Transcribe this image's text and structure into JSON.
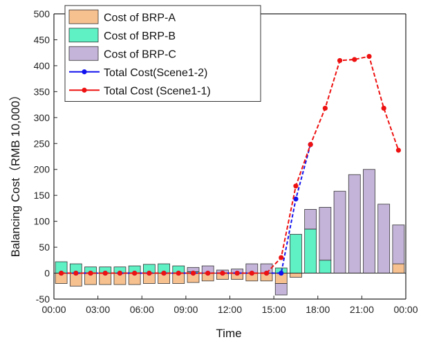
{
  "chart_data": {
    "type": "bar",
    "xlabel": "Time",
    "ylabel": "Balancing Cost（RMB 10,000）",
    "ylim": [
      -50,
      500
    ],
    "yticks": [
      -50,
      0,
      50,
      100,
      150,
      200,
      250,
      300,
      350,
      400,
      450,
      500
    ],
    "xlim": [
      0,
      24
    ],
    "xticks": [
      0,
      3,
      6,
      9,
      12,
      15,
      18,
      21,
      24
    ],
    "xtick_labels": [
      "00:00",
      "03:00",
      "06:00",
      "09:00",
      "12:00",
      "15:00",
      "18:00",
      "21:00",
      "00:00"
    ],
    "hours": [
      0,
      1,
      2,
      3,
      4,
      5,
      6,
      7,
      8,
      9,
      10,
      11,
      12,
      13,
      14,
      15,
      16,
      17,
      18,
      19,
      20,
      21,
      22,
      23
    ],
    "bar_series": [
      {
        "name": "Cost of BRP-A",
        "color": "#f7c08f",
        "values": [
          -20,
          -25,
          -22,
          -22,
          -22,
          -22,
          -20,
          -20,
          -20,
          -18,
          -15,
          -12,
          -12,
          -15,
          -15,
          -20,
          -8,
          0,
          0,
          0,
          0,
          0,
          0,
          18
        ]
      },
      {
        "name": "Cost of BRP-B",
        "color": "#5ff0c4",
        "values": [
          22,
          18,
          12,
          12,
          12,
          14,
          17,
          18,
          14,
          3,
          0,
          0,
          0,
          0,
          0,
          10,
          75,
          85,
          25,
          0,
          0,
          0,
          0,
          0
        ]
      },
      {
        "name": "Cost of BRP-C",
        "color": "#c4b4d9",
        "values": [
          0,
          0,
          0,
          0,
          0,
          0,
          0,
          0,
          0,
          8,
          14,
          6,
          8,
          18,
          18,
          -22,
          0,
          38,
          102,
          158,
          190,
          200,
          133,
          75
        ]
      }
    ],
    "line_series": [
      {
        "name": "Total Cost(Scene1-2)",
        "color": "#1111ee",
        "x": [
          0,
          1,
          2,
          3,
          4,
          5,
          6,
          7,
          8,
          9,
          10,
          11,
          12,
          13,
          14,
          15,
          16,
          17
        ],
        "y": [
          0,
          0,
          0,
          0,
          0,
          0,
          0,
          0,
          0,
          0,
          0,
          0,
          0,
          0,
          0,
          0,
          143,
          248
        ]
      },
      {
        "name": "Total Cost (Scene1-1)",
        "color": "#ee1111",
        "x": [
          0,
          1,
          2,
          3,
          4,
          5,
          6,
          7,
          8,
          9,
          10,
          11,
          12,
          13,
          14,
          15,
          16,
          17,
          18,
          19,
          20,
          21,
          22,
          23
        ],
        "y": [
          0,
          0,
          0,
          0,
          0,
          0,
          0,
          0,
          0,
          0,
          0,
          0,
          0,
          0,
          0,
          30,
          168,
          248,
          318,
          410,
          412,
          418,
          318,
          237
        ]
      }
    ],
    "legend": {
      "placement": "top-left",
      "entries": [
        "Cost of BRP-A",
        "Cost of BRP-B",
        "Cost of BRP-C",
        "Total Cost(Scene1-2)",
        "Total Cost (Scene1-1)"
      ]
    },
    "grid": false
  }
}
